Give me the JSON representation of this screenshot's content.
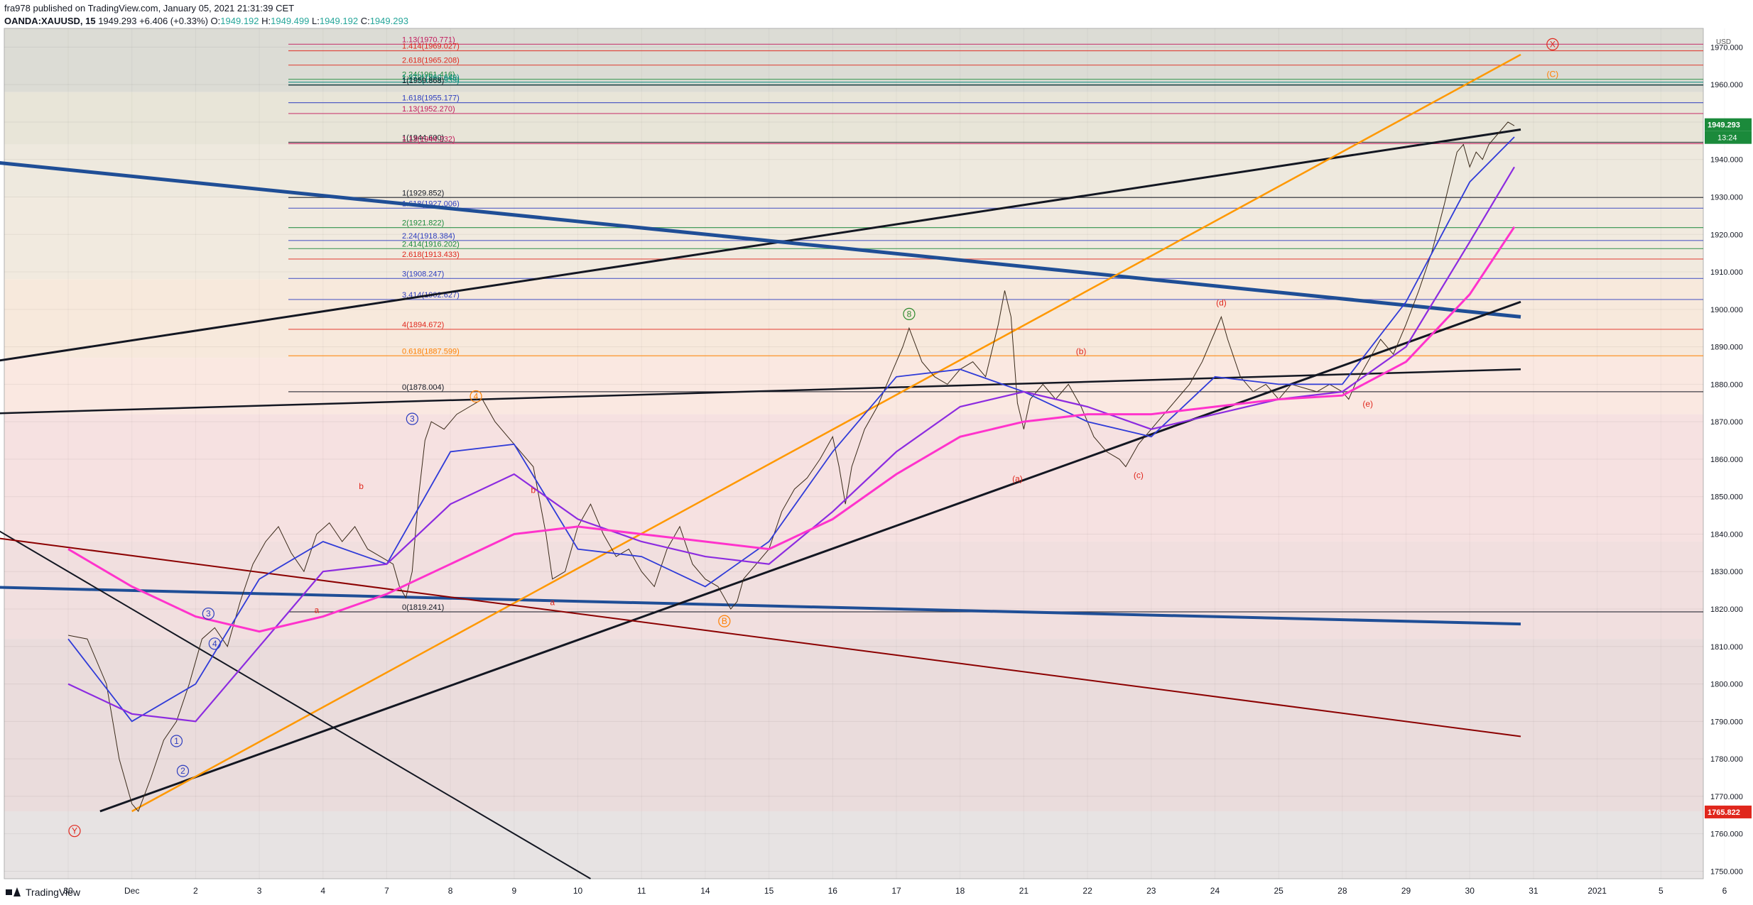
{
  "header": {
    "published": "fra978 published on TradingView.com, January 05, 2021 21:31:39 CET",
    "symbol": "OANDA:XAUUSD, 15",
    "last": "1949.293",
    "change": "+6.406 (+0.33%)",
    "o_label": "O:",
    "o": "1949.192",
    "h_label": "H:",
    "h": "1949.499",
    "l_label": "L:",
    "l": "1949.192",
    "c_label": "C:",
    "c": "1949.293"
  },
  "price_axis": {
    "currency": "USD",
    "ticks": [
      1750,
      1760,
      1770,
      1780,
      1790,
      1800,
      1810,
      1820,
      1830,
      1840,
      1850,
      1860,
      1870,
      1880,
      1890,
      1900,
      1910,
      1920,
      1930,
      1940,
      1950,
      1960,
      1970
    ],
    "tick_labels": [
      "1750.000",
      "1760.000",
      "1770.000",
      "1780.000",
      "1790.000",
      "1800.000",
      "1810.000",
      "1820.000",
      "1830.000",
      "1840.000",
      "1850.000",
      "1860.000",
      "1870.000",
      "1880.000",
      "1890.000",
      "1900.000",
      "1910.000",
      "1920.000",
      "1930.000",
      "1940.000",
      "1950.000",
      "1960.000",
      "1970.000"
    ],
    "last_price_label": "1949.293",
    "countdown_label": "13:24",
    "low_marker_label": "1765.822",
    "colors": {
      "last": "#1b8a3b",
      "countdown": "#1b8a3b",
      "low": "#e0271d"
    }
  },
  "time_axis": {
    "labels": [
      "30",
      "Dec",
      "2",
      "3",
      "4",
      "7",
      "8",
      "9",
      "10",
      "11",
      "14",
      "15",
      "16",
      "17",
      "18",
      "21",
      "22",
      "23",
      "24",
      "25",
      "28",
      "29",
      "30",
      "31",
      "2021",
      "5",
      "6"
    ]
  },
  "footer": {
    "brand": "TradingView"
  },
  "chart_data": {
    "type": "line",
    "title": "",
    "ylim": [
      1748,
      1975
    ],
    "series": [
      {
        "points": [
          [
            0,
            1813
          ],
          [
            0.3,
            1812
          ],
          [
            0.6,
            1800
          ],
          [
            0.8,
            1780
          ],
          [
            1.0,
            1768
          ],
          [
            1.1,
            1766
          ],
          [
            1.3,
            1775
          ],
          [
            1.5,
            1785
          ],
          [
            1.7,
            1790
          ],
          [
            1.9,
            1800
          ],
          [
            2.1,
            1812
          ],
          [
            2.3,
            1815
          ],
          [
            2.5,
            1810
          ],
          [
            2.7,
            1822
          ],
          [
            2.9,
            1832
          ],
          [
            3.1,
            1838
          ],
          [
            3.3,
            1842
          ],
          [
            3.5,
            1835
          ],
          [
            3.7,
            1830
          ],
          [
            3.9,
            1840
          ],
          [
            4.1,
            1843
          ],
          [
            4.3,
            1838
          ],
          [
            4.5,
            1842
          ],
          [
            4.7,
            1836
          ],
          [
            4.9,
            1834
          ],
          [
            5.1,
            1832
          ],
          [
            5.2,
            1826
          ],
          [
            5.3,
            1823
          ],
          [
            5.4,
            1830
          ],
          [
            5.5,
            1850
          ],
          [
            5.6,
            1865
          ],
          [
            5.7,
            1870
          ],
          [
            5.9,
            1868
          ],
          [
            6.1,
            1872
          ],
          [
            6.3,
            1874
          ],
          [
            6.5,
            1876
          ],
          [
            6.7,
            1870
          ],
          [
            6.9,
            1866
          ],
          [
            7.1,
            1862
          ],
          [
            7.3,
            1858
          ],
          [
            7.5,
            1840
          ],
          [
            7.6,
            1828
          ],
          [
            7.8,
            1830
          ],
          [
            8.0,
            1842
          ],
          [
            8.2,
            1848
          ],
          [
            8.4,
            1840
          ],
          [
            8.6,
            1834
          ],
          [
            8.8,
            1836
          ],
          [
            9.0,
            1830
          ],
          [
            9.2,
            1826
          ],
          [
            9.4,
            1836
          ],
          [
            9.6,
            1842
          ],
          [
            9.8,
            1832
          ],
          [
            10.0,
            1828
          ],
          [
            10.2,
            1826
          ],
          [
            10.4,
            1820
          ],
          [
            10.5,
            1822
          ],
          [
            10.6,
            1828
          ],
          [
            10.8,
            1832
          ],
          [
            11.0,
            1836
          ],
          [
            11.2,
            1846
          ],
          [
            11.4,
            1852
          ],
          [
            11.6,
            1855
          ],
          [
            11.8,
            1860
          ],
          [
            12.0,
            1866
          ],
          [
            12.1,
            1858
          ],
          [
            12.2,
            1848
          ],
          [
            12.3,
            1858
          ],
          [
            12.5,
            1868
          ],
          [
            12.7,
            1874
          ],
          [
            12.9,
            1882
          ],
          [
            13.1,
            1890
          ],
          [
            13.2,
            1895
          ],
          [
            13.4,
            1886
          ],
          [
            13.6,
            1882
          ],
          [
            13.8,
            1880
          ],
          [
            14.0,
            1884
          ],
          [
            14.2,
            1886
          ],
          [
            14.4,
            1882
          ],
          [
            14.6,
            1896
          ],
          [
            14.7,
            1905
          ],
          [
            14.8,
            1898
          ],
          [
            14.9,
            1875
          ],
          [
            15.0,
            1868
          ],
          [
            15.1,
            1876
          ],
          [
            15.3,
            1880
          ],
          [
            15.5,
            1876
          ],
          [
            15.7,
            1880
          ],
          [
            15.9,
            1874
          ],
          [
            16.1,
            1866
          ],
          [
            16.3,
            1862
          ],
          [
            16.5,
            1860
          ],
          [
            16.6,
            1858
          ],
          [
            16.8,
            1864
          ],
          [
            17.0,
            1868
          ],
          [
            17.2,
            1872
          ],
          [
            17.4,
            1876
          ],
          [
            17.6,
            1880
          ],
          [
            17.8,
            1886
          ],
          [
            18.0,
            1894
          ],
          [
            18.1,
            1898
          ],
          [
            18.2,
            1892
          ],
          [
            18.4,
            1882
          ],
          [
            18.6,
            1878
          ],
          [
            18.8,
            1880
          ],
          [
            19.0,
            1876
          ],
          [
            19.2,
            1880
          ],
          [
            19.4,
            1879
          ],
          [
            19.6,
            1878
          ],
          [
            19.8,
            1880
          ],
          [
            20.0,
            1878
          ],
          [
            20.1,
            1876
          ],
          [
            20.2,
            1880
          ],
          [
            20.4,
            1886
          ],
          [
            20.6,
            1892
          ],
          [
            20.8,
            1888
          ],
          [
            21.0,
            1896
          ],
          [
            21.2,
            1905
          ],
          [
            21.4,
            1915
          ],
          [
            21.6,
            1928
          ],
          [
            21.8,
            1942
          ],
          [
            21.9,
            1944
          ],
          [
            22.0,
            1938
          ],
          [
            22.1,
            1942
          ],
          [
            22.2,
            1940
          ],
          [
            22.3,
            1944
          ],
          [
            22.4,
            1946
          ],
          [
            22.6,
            1950
          ],
          [
            22.7,
            1949
          ]
        ]
      },
      {
        "points": [
          [
            0,
            1812
          ],
          [
            1,
            1790
          ],
          [
            2,
            1800
          ],
          [
            3,
            1828
          ],
          [
            4,
            1838
          ],
          [
            5,
            1832
          ],
          [
            6,
            1862
          ],
          [
            7,
            1864
          ],
          [
            8,
            1836
          ],
          [
            9,
            1834
          ],
          [
            10,
            1826
          ],
          [
            11,
            1838
          ],
          [
            12,
            1862
          ],
          [
            13,
            1882
          ],
          [
            14,
            1884
          ],
          [
            15,
            1878
          ],
          [
            16,
            1870
          ],
          [
            17,
            1866
          ],
          [
            18,
            1882
          ],
          [
            19,
            1880
          ],
          [
            20,
            1880
          ],
          [
            21,
            1902
          ],
          [
            22,
            1934
          ],
          [
            22.7,
            1946
          ]
        ]
      },
      {
        "points": [
          [
            0,
            1800
          ],
          [
            1,
            1792
          ],
          [
            2,
            1790
          ],
          [
            3,
            1810
          ],
          [
            4,
            1830
          ],
          [
            5,
            1832
          ],
          [
            6,
            1848
          ],
          [
            7,
            1856
          ],
          [
            8,
            1844
          ],
          [
            9,
            1838
          ],
          [
            10,
            1834
          ],
          [
            11,
            1832
          ],
          [
            12,
            1846
          ],
          [
            13,
            1862
          ],
          [
            14,
            1874
          ],
          [
            15,
            1878
          ],
          [
            16,
            1874
          ],
          [
            17,
            1868
          ],
          [
            18,
            1872
          ],
          [
            19,
            1876
          ],
          [
            20,
            1878
          ],
          [
            21,
            1890
          ],
          [
            22,
            1918
          ],
          [
            22.7,
            1938
          ]
        ]
      },
      {
        "points": [
          [
            0,
            1836
          ],
          [
            1,
            1826
          ],
          [
            2,
            1818
          ],
          [
            3,
            1814
          ],
          [
            4,
            1818
          ],
          [
            5,
            1824
          ],
          [
            6,
            1832
          ],
          [
            7,
            1840
          ],
          [
            8,
            1842
          ],
          [
            9,
            1840
          ],
          [
            10,
            1838
          ],
          [
            11,
            1836
          ],
          [
            12,
            1844
          ],
          [
            13,
            1856
          ],
          [
            14,
            1866
          ],
          [
            15,
            1870
          ],
          [
            16,
            1872
          ],
          [
            17,
            1872
          ],
          [
            18,
            1874
          ],
          [
            19,
            1876
          ],
          [
            20,
            1877
          ],
          [
            21,
            1886
          ],
          [
            22,
            1904
          ],
          [
            22.7,
            1922
          ]
        ]
      }
    ],
    "elliott_labels": [
      {
        "x": 0.1,
        "y": 1760,
        "text": "Y",
        "color": "#e0271d",
        "circled": true
      },
      {
        "x": 2.2,
        "y": 1818,
        "text": "3",
        "color": "#2d3dbf",
        "circled": true
      },
      {
        "x": 2.3,
        "y": 1810,
        "text": "4",
        "color": "#2d3dbf",
        "circled": true
      },
      {
        "x": 1.7,
        "y": 1784,
        "text": "1",
        "color": "#2d3dbf",
        "circled": true
      },
      {
        "x": 1.8,
        "y": 1776,
        "text": "2",
        "color": "#2d3dbf",
        "circled": true
      },
      {
        "x": 5.4,
        "y": 1870,
        "text": "3",
        "color": "#2d3dbf",
        "circled": true
      },
      {
        "x": 6.4,
        "y": 1876,
        "text": "4",
        "color": "#ff7f00",
        "circled": true
      },
      {
        "x": 7.3,
        "y": 1851,
        "text": "b",
        "color": "#e0271d",
        "circled": false
      },
      {
        "x": 7.6,
        "y": 1821,
        "text": "a",
        "color": "#e0271d",
        "circled": false
      },
      {
        "x": 4.6,
        "y": 1852,
        "text": "b",
        "color": "#e0271d",
        "circled": false
      },
      {
        "x": 3.9,
        "y": 1819,
        "text": "a",
        "color": "#e0271d",
        "circled": false
      },
      {
        "x": 10.3,
        "y": 1816,
        "text": "B",
        "color": "#ff7f00",
        "circled": true
      },
      {
        "x": 13.2,
        "y": 1898,
        "text": "8",
        "color": "#2d8a2d",
        "circled": true
      },
      {
        "x": 14.9,
        "y": 1854,
        "text": "(a)",
        "color": "#e0271d",
        "circled": false
      },
      {
        "x": 15.9,
        "y": 1888,
        "text": "(b)",
        "color": "#e0271d",
        "circled": false
      },
      {
        "x": 16.8,
        "y": 1855,
        "text": "(c)",
        "color": "#e0271d",
        "circled": false
      },
      {
        "x": 18.1,
        "y": 1901,
        "text": "(d)",
        "color": "#e0271d",
        "circled": false
      },
      {
        "x": 20.4,
        "y": 1874,
        "text": "(e)",
        "color": "#e0271d",
        "circled": false
      },
      {
        "x": 23.3,
        "y": 1970,
        "text": "X",
        "color": "#e0271d",
        "circled": true
      },
      {
        "x": 23.3,
        "y": 1962,
        "text": "(C)",
        "color": "#ff7f00",
        "circled": false
      }
    ],
    "horizontal_levels": [
      {
        "y": 1970.771,
        "label": "1.13(1970.771)",
        "color": "#c2185b"
      },
      {
        "y": 1969.027,
        "label": "1.414(1969.027)",
        "color": "#e0271d"
      },
      {
        "y": 1965.208,
        "label": "2.618(1965.208)",
        "color": "#e0271d"
      },
      {
        "y": 1961.416,
        "label": "2.24(1961.416)",
        "color": "#1b8a3b"
      },
      {
        "y": 1960.649,
        "label": "1.272(1960.649)",
        "color": "#00897b"
      },
      {
        "y": 1959.939,
        "label": "1.272(1959.939)",
        "color": "#00897b"
      },
      {
        "y": 1959.868,
        "label": "1(1959.868)",
        "color": "#131722"
      },
      {
        "y": 1955.177,
        "label": "1.618(1955.177)",
        "color": "#2d3dbf"
      },
      {
        "y": 1952.27,
        "label": "1.13(1952.270)",
        "color": "#c2185b"
      },
      {
        "y": 1944.6,
        "label": "1(1944.600)",
        "color": "#131722"
      },
      {
        "y": 1944.232,
        "label": "1.13(1944.232)",
        "color": "#c2185b"
      },
      {
        "y": 1929.852,
        "label": "1(1929.852)",
        "color": "#131722"
      },
      {
        "y": 1927.006,
        "label": "1.618(1927.006)",
        "color": "#2d3dbf"
      },
      {
        "y": 1921.822,
        "label": "2(1921.822)",
        "color": "#1b8a3b"
      },
      {
        "y": 1918.384,
        "label": "2.24(1918.384)",
        "color": "#2d3dbf"
      },
      {
        "y": 1916.202,
        "label": "2.414(1916.202)",
        "color": "#1b8a3b"
      },
      {
        "y": 1913.433,
        "label": "2.618(1913.433)",
        "color": "#e0271d"
      },
      {
        "y": 1908.247,
        "label": "3(1908.247)",
        "color": "#2d3dbf"
      },
      {
        "y": 1902.627,
        "label": "3.414(1902.627)",
        "color": "#2d3dbf"
      },
      {
        "y": 1894.672,
        "label": "4(1894.672)",
        "color": "#e0271d"
      },
      {
        "y": 1887.599,
        "label": "0.618(1887.599)",
        "color": "#ff7f00"
      },
      {
        "y": 1878.004,
        "label": "0(1878.004)",
        "color": "#131722"
      },
      {
        "y": 1819.241,
        "label": "0(1819.241)",
        "color": "#131722"
      }
    ]
  }
}
